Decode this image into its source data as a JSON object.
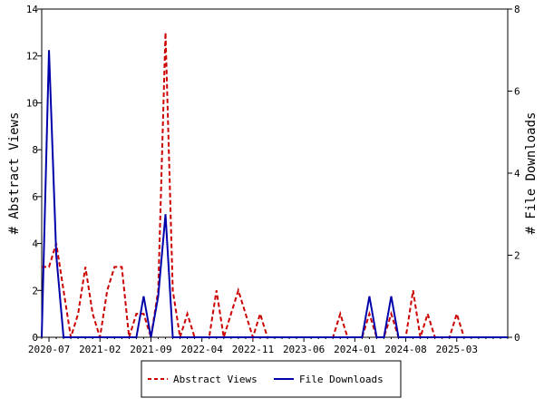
{
  "chart_data": {
    "type": "line",
    "x": [
      "2020-06",
      "2020-07",
      "2020-08",
      "2020-09",
      "2020-10",
      "2020-11",
      "2020-12",
      "2021-01",
      "2021-02",
      "2021-03",
      "2021-04",
      "2021-05",
      "2021-06",
      "2021-07",
      "2021-08",
      "2021-09",
      "2021-10",
      "2021-11",
      "2021-12",
      "2022-01",
      "2022-02",
      "2022-03",
      "2022-04",
      "2022-05",
      "2022-06",
      "2022-07",
      "2022-08",
      "2022-09",
      "2022-10",
      "2022-11",
      "2022-12",
      "2023-01",
      "2023-02",
      "2023-03",
      "2023-04",
      "2023-05",
      "2023-06",
      "2023-07",
      "2023-08",
      "2023-09",
      "2023-10",
      "2023-11",
      "2023-12",
      "2024-01",
      "2024-02",
      "2024-03",
      "2024-04",
      "2024-05",
      "2024-06",
      "2024-07",
      "2024-08",
      "2024-09",
      "2024-10",
      "2024-11",
      "2024-12",
      "2025-01",
      "2025-02",
      "2025-03",
      "2025-04",
      "2025-05",
      "2025-06",
      "2025-07",
      "2025-08",
      "2025-09",
      "2025-10"
    ],
    "x_tick_labels": [
      "2020-07",
      "2021-02",
      "2021-09",
      "2022-04",
      "2022-11",
      "2023-06",
      "2024-01",
      "2024-08",
      "2025-03"
    ],
    "series": [
      {
        "name": "Abstract Views",
        "axis": "left",
        "color": "#cc0000",
        "style": "dashed",
        "values": [
          3,
          3,
          4,
          2,
          0,
          1,
          3,
          1,
          0,
          2,
          3,
          3,
          0,
          1,
          1,
          0,
          2,
          13,
          2,
          0,
          1,
          0,
          0,
          0,
          2,
          0,
          1,
          2,
          1,
          0,
          1,
          0,
          0,
          0,
          0,
          0,
          0,
          0,
          0,
          0,
          0,
          1,
          0,
          0,
          0,
          1,
          0,
          0,
          1,
          0,
          0,
          2,
          0,
          1,
          0,
          0,
          0,
          1,
          0,
          0,
          0,
          0,
          0,
          0,
          0
        ]
      },
      {
        "name": "File Downloads",
        "axis": "right",
        "color": "#0000aa",
        "style": "solid",
        "values": [
          0,
          7,
          2,
          0,
          0,
          0,
          0,
          0,
          0,
          0,
          0,
          0,
          0,
          0,
          1,
          0,
          1,
          3,
          0,
          0,
          0,
          0,
          0,
          0,
          0,
          0,
          0,
          0,
          0,
          0,
          0,
          0,
          0,
          0,
          0,
          0,
          0,
          0,
          0,
          0,
          0,
          0,
          0,
          0,
          0,
          1,
          0,
          0,
          1,
          0,
          0,
          0,
          0,
          0,
          0,
          0,
          0,
          0,
          0,
          0,
          0,
          0,
          0,
          0,
          0
        ]
      }
    ],
    "ylabel_left": "# Abstract Views",
    "ylabel_right": "# File Downloads",
    "ylim_left": [
      0,
      14
    ],
    "yticks_left": [
      0,
      2,
      4,
      6,
      8,
      10,
      12,
      14
    ],
    "ylim_right": [
      0,
      8
    ],
    "yticks_right": [
      0,
      2,
      4,
      6,
      8
    ],
    "grid": false,
    "legend": {
      "placement": "bottom-center",
      "entries": [
        "Abstract Views",
        "File Downloads"
      ]
    }
  }
}
